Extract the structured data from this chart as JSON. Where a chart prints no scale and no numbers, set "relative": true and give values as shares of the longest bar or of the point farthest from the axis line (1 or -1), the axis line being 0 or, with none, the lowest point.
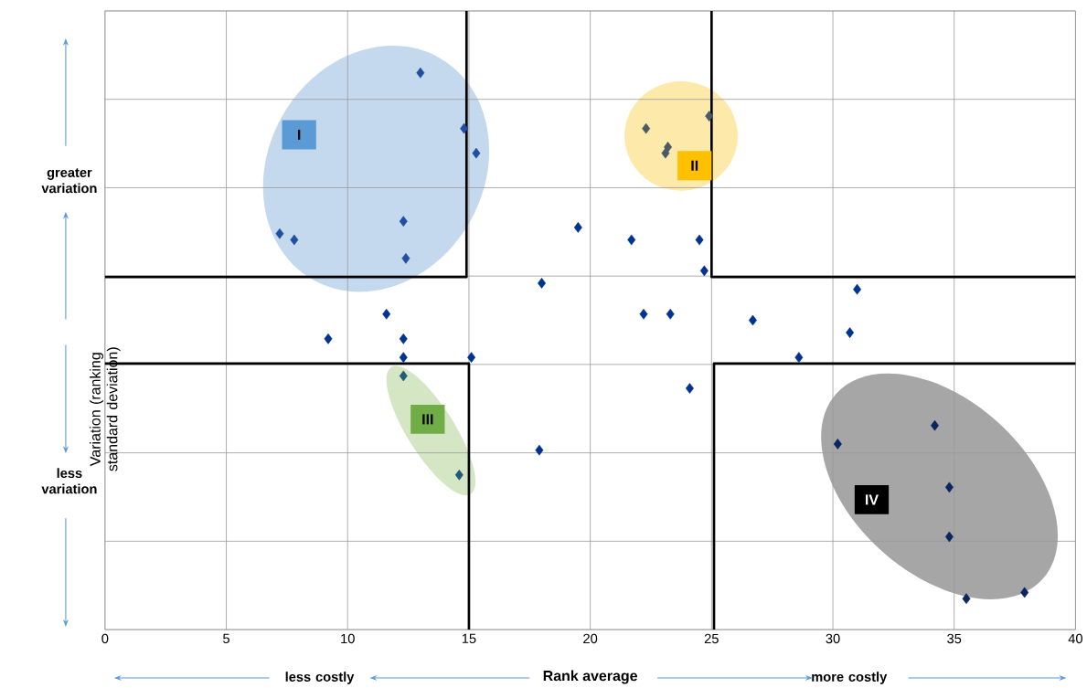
{
  "chart_data": {
    "type": "scatter",
    "relative": true,
    "marker": "diamond",
    "grid": true,
    "tick_labels": "x",
    "xlabel": "Rank average",
    "ylabel": "Variation (ranking standard deviation)",
    "xlim": [
      0,
      40
    ],
    "xticks": [
      0,
      5,
      10,
      15,
      20,
      25,
      30,
      35,
      40
    ],
    "annotations": [
      "greater variation",
      "less variation",
      "less costly",
      "more costly",
      {
        "text": "I",
        "x": 8.0,
        "y": 0.8
      },
      {
        "text": "II",
        "x": 24.3,
        "y": 0.75
      },
      {
        "text": "III",
        "x": 13.3,
        "y": 0.34
      },
      {
        "text": "IV",
        "x": 31.6,
        "y": 0.21
      }
    ],
    "series": [
      {
        "x": [
          13.0,
          14.8,
          15.3,
          7.2,
          7.8,
          12.3,
          12.4,
          22.3,
          24.9,
          23.2,
          23.1,
          19.5,
          21.7,
          24.5,
          24.7,
          18.0,
          31.0,
          11.6,
          22.2,
          23.3,
          26.7,
          30.7,
          9.2,
          12.3,
          12.3,
          15.1,
          28.6,
          24.1,
          12.3,
          17.9,
          14.6,
          34.2,
          30.2,
          34.8,
          34.8,
          35.5,
          37.9
        ],
        "values": [
          0.9,
          0.81,
          0.77,
          0.64,
          0.63,
          0.66,
          0.6,
          0.81,
          0.83,
          0.78,
          0.77,
          0.65,
          0.63,
          0.63,
          0.58,
          0.56,
          0.55,
          0.51,
          0.51,
          0.51,
          0.5,
          0.48,
          0.47,
          0.47,
          0.44,
          0.44,
          0.44,
          0.39,
          0.41,
          0.29,
          0.25,
          0.33,
          0.3,
          0.23,
          0.15,
          0.05,
          0.06
        ],
        "colors": [
          "#1f4fa0",
          "#1f4fa0",
          "#1f4fa0",
          "#1f4fa0",
          "#1f4fa0",
          "#1f4fa0",
          "#1f4fa0",
          "#4b5b63",
          "#4b5b63",
          "#4b5b63",
          "#4b5b63",
          "#00338f",
          "#00338f",
          "#00338f",
          "#00338f",
          "#00338f",
          "#00338f",
          "#00338f",
          "#00338f",
          "#00338f",
          "#00338f",
          "#00338f",
          "#00338f",
          "#00338f",
          "#00338f",
          "#00338f",
          "#00338f",
          "#00338f",
          "#235a7a",
          "#00338f",
          "#235a7a",
          "#0b2560",
          "#0b2560",
          "#0b2560",
          "#0b2560",
          "#0b2560",
          "#0b2560"
        ]
      },
      {
        "type": "line",
        "marker": "none",
        "color": "#000000",
        "x": [
          0,
          14.9,
          14.9
        ],
        "values": [
          0.57,
          0.57,
          1
        ]
      },
      {
        "type": "line",
        "marker": "none",
        "color": "#000000",
        "x": [
          0,
          15.0,
          15.0
        ],
        "values": [
          0.43,
          0.43,
          0
        ]
      },
      {
        "type": "line",
        "marker": "none",
        "color": "#000000",
        "x": [
          40,
          25.0,
          25.0
        ],
        "values": [
          0.57,
          0.57,
          1
        ]
      },
      {
        "type": "line",
        "marker": "none",
        "color": "#000000",
        "x": [
          40,
          25.1,
          25.1
        ],
        "values": [
          0.43,
          0.43,
          0
        ]
      }
    ]
  }
}
